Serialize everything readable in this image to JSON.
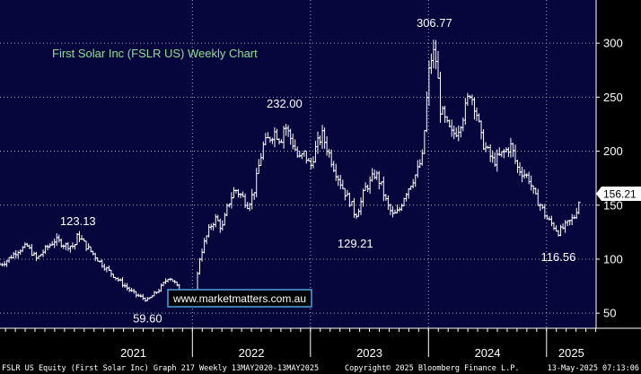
{
  "chart_data": {
    "type": "ohlc",
    "title": "First Solar Inc (FSLR US) Weekly Chart",
    "y_ticks": [
      50,
      100,
      150,
      200,
      250,
      300
    ],
    "ylim": [
      36,
      340
    ],
    "x_ticks": [
      "2021",
      "2022",
      "2023",
      "2024",
      "2025"
    ],
    "xlim": [
      2020.37,
      2025.42
    ],
    "grid": true,
    "last_price": "156.21",
    "annotations": [
      {
        "label": "123.13",
        "x": 2021.03,
        "y": 123.13
      },
      {
        "label": "59.60",
        "x": 2021.62,
        "y": 59.6
      },
      {
        "label": "232.00",
        "x": 2022.78,
        "y": 232.0
      },
      {
        "label": "129.21",
        "x": 2023.38,
        "y": 129.21
      },
      {
        "label": "306.77",
        "x": 2024.05,
        "y": 306.77
      },
      {
        "label": "116.56",
        "x": 2025.1,
        "y": 116.56
      }
    ],
    "series": [
      {
        "x": [
          2020.37,
          2020.42,
          2020.47,
          2020.52,
          2020.6,
          2020.68,
          2020.76,
          2020.84,
          2020.92,
          2021.0,
          2021.03,
          2021.06,
          2021.1,
          2021.15,
          2021.22,
          2021.3,
          2021.38,
          2021.46,
          2021.52,
          2021.58,
          2021.62,
          2021.66,
          2021.72,
          2021.8,
          2021.85,
          2021.9,
          2021.95,
          2022.0,
          2022.03,
          2022.06,
          2022.1,
          2022.15,
          2022.2,
          2022.25,
          2022.3,
          2022.36,
          2022.42,
          2022.47,
          2022.52,
          2022.56,
          2022.6,
          2022.65,
          2022.7,
          2022.75,
          2022.78,
          2022.82,
          2022.86,
          2022.9,
          2022.95,
          2023.0,
          2023.05,
          2023.1,
          2023.15,
          2023.2,
          2023.25,
          2023.3,
          2023.35,
          2023.38,
          2023.42,
          2023.46,
          2023.5,
          2023.55,
          2023.6,
          2023.65,
          2023.7,
          2023.75,
          2023.8,
          2023.85,
          2023.9,
          2023.95,
          2024.0,
          2024.02,
          2024.05,
          2024.07,
          2024.1,
          2024.15,
          2024.2,
          2024.25,
          2024.3,
          2024.35,
          2024.4,
          2024.45,
          2024.5,
          2024.55,
          2024.6,
          2024.65,
          2024.7,
          2024.75,
          2024.8,
          2024.85,
          2024.9,
          2024.95,
          2025.0,
          2025.05,
          2025.1,
          2025.15,
          2025.2,
          2025.24,
          2025.28
        ],
        "y": [
          95,
          98,
          103,
          108,
          112,
          100,
          110,
          118,
          113,
          112,
          123,
          118,
          112,
          106,
          97,
          88,
          80,
          72,
          67,
          64,
          62,
          66,
          72,
          84,
          78,
          69,
          66,
          62,
          75,
          100,
          115,
          130,
          138,
          128,
          150,
          165,
          158,
          150,
          162,
          185,
          205,
          212,
          218,
          210,
          225,
          215,
          205,
          192,
          198,
          185,
          205,
          215,
          200,
          185,
          172,
          160,
          150,
          140,
          150,
          165,
          170,
          180,
          168,
          150,
          140,
          145,
          160,
          170,
          180,
          195,
          270,
          285,
          292,
          280,
          240,
          225,
          215,
          220,
          235,
          255,
          240,
          210,
          200,
          190,
          195,
          200,
          205,
          185,
          180,
          175,
          158,
          150,
          138,
          132,
          125,
          130,
          135,
          140,
          156
        ]
      }
    ]
  },
  "watermark": "www.marketmatters.com.au",
  "footer": {
    "left": "FSLR US Equity (First Solar Inc) Graph 217  Weekly 13MAY2020-13MAY2025",
    "center": "Copyright© 2025 Bloomberg Finance L.P.",
    "right": "13-May-2025 07:13:06"
  },
  "colors": {
    "background": "#000000",
    "plot_background": "#06063c",
    "title": "#8ee08e",
    "grid": "#a8a8c8",
    "bars": "#ffffff",
    "watermark_border": "#4fa3e0"
  }
}
